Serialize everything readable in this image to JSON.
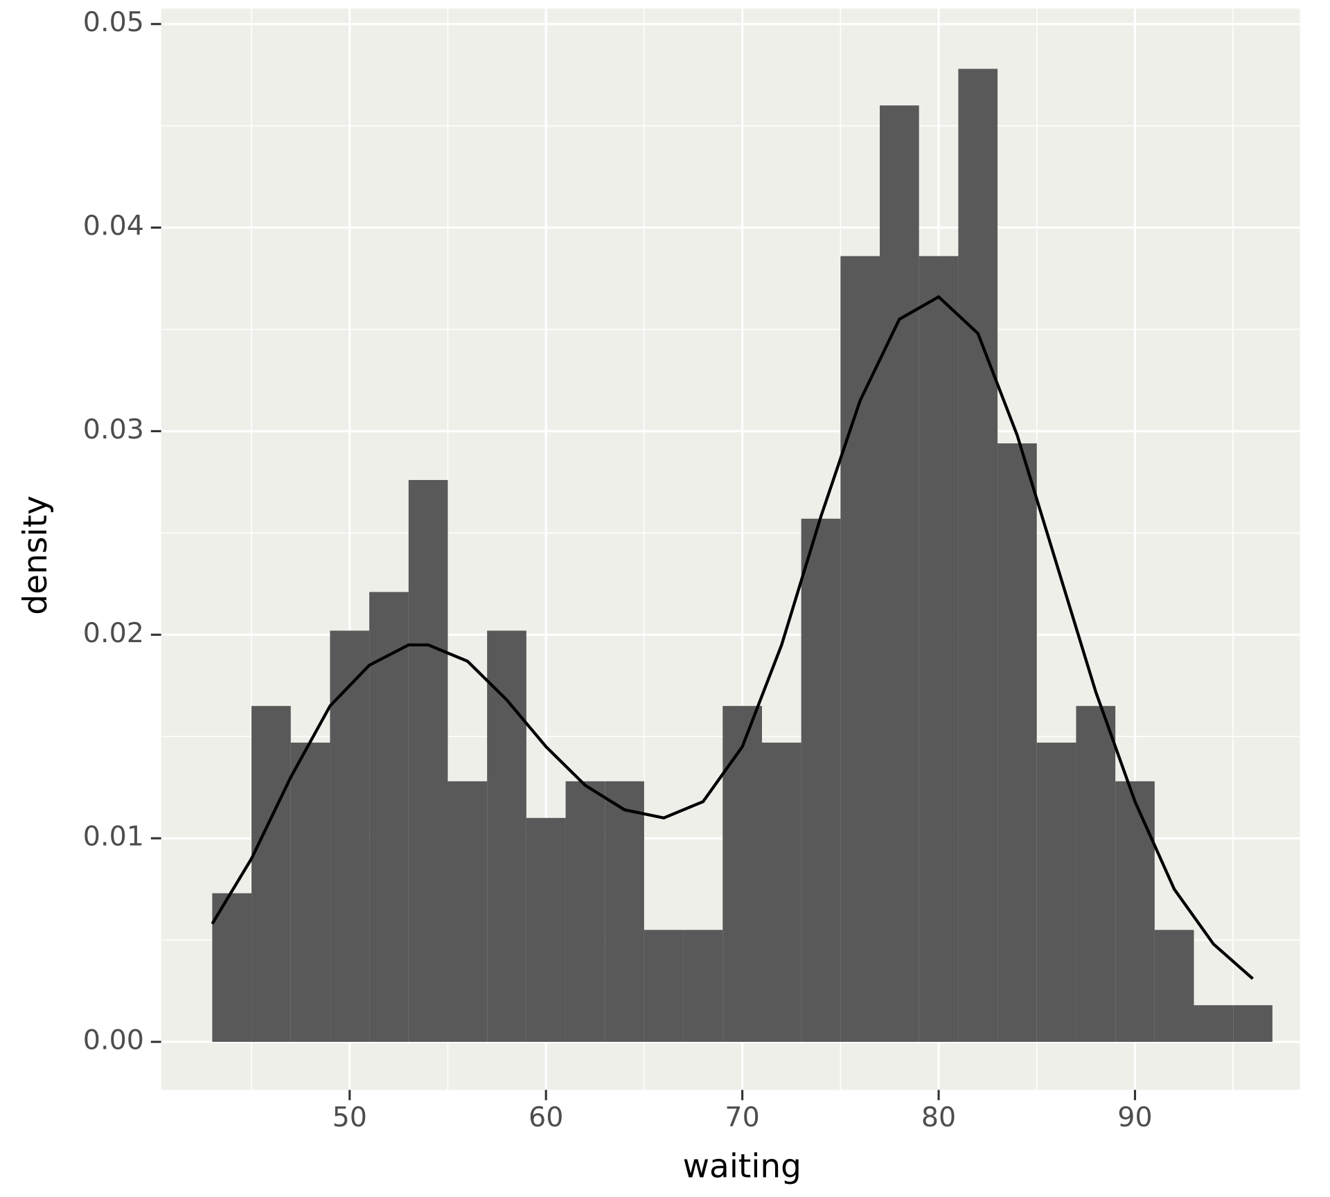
{
  "chart_data": {
    "type": "histogram",
    "x_label": "waiting",
    "y_label": "density",
    "bins": [
      43,
      45,
      47,
      49,
      51,
      53,
      55,
      57,
      59,
      61,
      63,
      65,
      67,
      69,
      71,
      73,
      75,
      77,
      79,
      81,
      83,
      85,
      87,
      89,
      91,
      93,
      95,
      97
    ],
    "values": [
      0.0073,
      0.0165,
      0.0147,
      0.0202,
      0.0221,
      0.0276,
      0.0128,
      0.0202,
      0.011,
      0.0128,
      0.0128,
      0.0055,
      0.0055,
      0.0165,
      0.0147,
      0.0257,
      0.0386,
      0.046,
      0.0386,
      0.0478,
      0.0294,
      0.0147,
      0.0165,
      0.0128,
      0.0055,
      0.0018,
      0.0018
    ],
    "color": "#595959",
    "density": {
      "x": [
        43,
        45,
        47,
        49,
        51,
        53,
        54,
        56,
        58,
        60,
        62,
        64,
        66,
        68,
        70,
        72,
        74,
        76,
        78,
        80,
        82,
        84,
        86,
        88,
        90,
        92,
        94,
        96
      ],
      "values": [
        0.0058,
        0.009,
        0.013,
        0.0165,
        0.0185,
        0.0195,
        0.0195,
        0.0187,
        0.0168,
        0.0145,
        0.0126,
        0.0114,
        0.011,
        0.0118,
        0.0145,
        0.0195,
        0.0258,
        0.0315,
        0.0355,
        0.0366,
        0.0348,
        0.0298,
        0.0235,
        0.0172,
        0.0118,
        0.0075,
        0.0048,
        0.0031
      ],
      "color": "#000000"
    },
    "xlim": [
      40.4,
      98.4
    ],
    "xticks": [
      50,
      60,
      70,
      80,
      90
    ],
    "ylim": [
      -0.00236,
      0.05076
    ],
    "yticks": [
      {
        "value": 0,
        "label": "0.00"
      },
      0.01,
      0.02,
      0.03,
      0.04,
      0.05
    ],
    "grid": true,
    "panel_color": "#efefea"
  }
}
